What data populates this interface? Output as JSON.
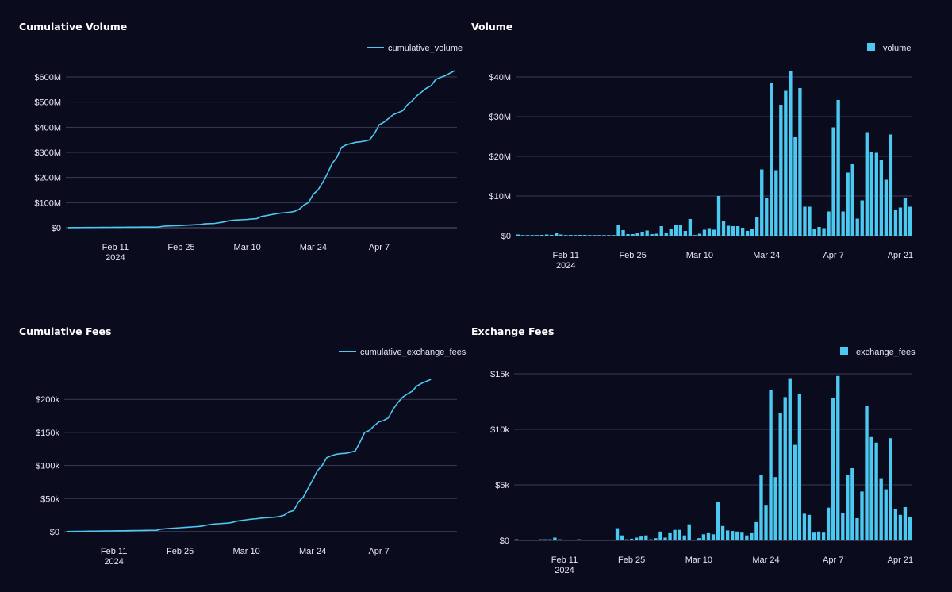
{
  "colors": {
    "background": "#0b0b1e",
    "series": "#4cc9f0",
    "grid": "#3a3a52"
  },
  "chart_data": [
    {
      "type": "line",
      "title": "Cumulative Volume",
      "legend": "cumulative_volume",
      "legend_position": "top-right",
      "x_ticks": [
        {
          "label": "Feb 11",
          "sub": "2024",
          "day": 10
        },
        {
          "label": "Feb 25",
          "day": 24
        },
        {
          "label": "Mar 10",
          "day": 38
        },
        {
          "label": "Mar 24",
          "day": 52
        },
        {
          "label": "Apr 7",
          "day": 66
        }
      ],
      "x_range": [
        "2024-02-01",
        "2024-04-23"
      ],
      "y_ticks": [
        {
          "label": "$0",
          "value": 0
        },
        {
          "label": "$100M",
          "value": 100
        },
        {
          "label": "$200M",
          "value": 200
        },
        {
          "label": "$300M",
          "value": 300
        },
        {
          "label": "$400M",
          "value": 400
        },
        {
          "label": "$500M",
          "value": 500
        },
        {
          "label": "$600M",
          "value": 600
        }
      ],
      "ylim": [
        0,
        600
      ],
      "y_unit": "millions USD",
      "x_start": "2024-02-01",
      "values": [
        0.3,
        0.5,
        0.6,
        0.8,
        0.9,
        1.0,
        1.2,
        1.4,
        1.5,
        1.6,
        1.8,
        1.9,
        2.0,
        2.2,
        2.3,
        2.4,
        2.5,
        2.6,
        2.7,
        2.8,
        5.5,
        7,
        7.5,
        8,
        9,
        10,
        11,
        12,
        13,
        15.5,
        16.5,
        17,
        20,
        23,
        27,
        30,
        31,
        32,
        33,
        35,
        36,
        45,
        48,
        52,
        55,
        58,
        60,
        62,
        65,
        73,
        90,
        100,
        133,
        150,
        180,
        215,
        255,
        280,
        320,
        330,
        335,
        340,
        342,
        345,
        350,
        375,
        410,
        420,
        435,
        450,
        458,
        466,
        490,
        505,
        525,
        540,
        555,
        565,
        590,
        598,
        605,
        615,
        625
      ]
    },
    {
      "type": "bar",
      "title": "Volume",
      "legend": "volume",
      "legend_position": "top-right",
      "x_ticks": [
        {
          "label": "Feb 11",
          "sub": "2024",
          "day": 10
        },
        {
          "label": "Feb 25",
          "day": 24
        },
        {
          "label": "Mar 10",
          "day": 38
        },
        {
          "label": "Mar 24",
          "day": 52
        },
        {
          "label": "Apr 7",
          "day": 66
        },
        {
          "label": "Apr 21",
          "day": 80
        }
      ],
      "x_range": [
        "2024-02-01",
        "2024-04-23"
      ],
      "y_ticks": [
        {
          "label": "$0",
          "value": 0
        },
        {
          "label": "$10M",
          "value": 10
        },
        {
          "label": "$20M",
          "value": 20
        },
        {
          "label": "$30M",
          "value": 30
        },
        {
          "label": "$40M",
          "value": 40
        }
      ],
      "ylim": [
        0,
        40
      ],
      "y_unit": "millions USD",
      "x_start": "2024-02-01",
      "values": [
        0.3,
        0.1,
        0.1,
        0.1,
        0.1,
        0.2,
        0.3,
        0.2,
        0.7,
        0.3,
        0.1,
        0.2,
        0.1,
        0.2,
        0.2,
        0.1,
        0.1,
        0.1,
        0.1,
        0.1,
        0.1,
        2.8,
        1.4,
        0.4,
        0.4,
        0.6,
        1.0,
        1.3,
        0.4,
        0.5,
        2.4,
        0.6,
        1.8,
        2.7,
        2.7,
        1.2,
        4.2,
        0.1,
        0.5,
        1.5,
        1.9,
        1.5,
        10,
        3.8,
        2.5,
        2.4,
        2.4,
        2.0,
        1.2,
        1.8,
        4.8,
        16.7,
        9.5,
        38.5,
        16.5,
        33,
        36.5,
        41.5,
        24.8,
        37.2,
        7.3,
        7.3,
        1.8,
        2.2,
        1.9,
        6.1,
        27.3,
        34.2,
        6.1,
        15.9,
        18,
        4.3,
        8.9,
        26.1,
        21.1,
        20.9,
        19,
        14.1,
        25.5,
        6.5,
        7.1,
        9.4,
        7.3
      ]
    },
    {
      "type": "line",
      "title": "Cumulative Fees",
      "legend": "cumulative_exchange_fees",
      "legend_position": "top-right",
      "x_ticks": [
        {
          "label": "Feb 11",
          "sub": "2024",
          "day": 10
        },
        {
          "label": "Feb 25",
          "day": 24
        },
        {
          "label": "Mar 10",
          "day": 38
        },
        {
          "label": "Mar 24",
          "day": 52
        },
        {
          "label": "Apr 7",
          "day": 66
        }
      ],
      "x_range": [
        "2024-02-01",
        "2024-04-23"
      ],
      "y_ticks": [
        {
          "label": "$0",
          "value": 0
        },
        {
          "label": "$50k",
          "value": 50
        },
        {
          "label": "$100k",
          "value": 100
        },
        {
          "label": "$150k",
          "value": 150
        },
        {
          "label": "$200k",
          "value": 200
        }
      ],
      "ylim": [
        0,
        235
      ],
      "y_unit": "thousands USD",
      "x_start": "2024-02-01",
      "values": [
        0.3,
        0.4,
        0.5,
        0.6,
        0.7,
        0.8,
        0.9,
        1.0,
        1.1,
        1.2,
        1.3,
        1.4,
        1.5,
        1.6,
        1.7,
        1.8,
        1.9,
        2.0,
        2.1,
        2.2,
        4,
        4.5,
        5,
        5.5,
        6,
        6.5,
        7,
        7.5,
        8,
        9,
        10.5,
        11.5,
        12,
        12.5,
        13,
        14,
        16,
        17,
        18,
        19,
        19.5,
        20.5,
        21,
        21.5,
        22,
        23,
        25,
        30,
        32,
        45,
        52,
        65,
        78,
        92,
        100,
        112,
        115,
        117,
        118,
        118.5,
        120,
        122,
        135,
        150,
        153,
        160,
        166,
        168,
        172,
        185,
        195,
        203,
        208,
        212,
        220,
        224,
        227,
        230
      ]
    },
    {
      "type": "bar",
      "title": "Exchange Fees",
      "legend": "exchange_fees",
      "legend_position": "top-right",
      "x_ticks": [
        {
          "label": "Feb 11",
          "sub": "2024",
          "day": 10
        },
        {
          "label": "Feb 25",
          "day": 24
        },
        {
          "label": "Mar 10",
          "day": 38
        },
        {
          "label": "Mar 24",
          "day": 52
        },
        {
          "label": "Apr 7",
          "day": 66
        },
        {
          "label": "Apr 21",
          "day": 80
        }
      ],
      "x_range": [
        "2024-02-01",
        "2024-04-23"
      ],
      "y_ticks": [
        {
          "label": "$0",
          "value": 0
        },
        {
          "label": "$5k",
          "value": 5
        },
        {
          "label": "$10k",
          "value": 10
        },
        {
          "label": "$15k",
          "value": 15
        }
      ],
      "ylim": [
        0,
        15
      ],
      "y_unit": "thousands USD",
      "x_start": "2024-02-01",
      "values": [
        0.1,
        0.05,
        0.05,
        0.05,
        0.05,
        0.1,
        0.1,
        0.1,
        0.25,
        0.1,
        0.05,
        0.05,
        0.05,
        0.1,
        0.05,
        0.05,
        0.05,
        0.05,
        0.05,
        0.05,
        0.05,
        1.1,
        0.45,
        0.1,
        0.15,
        0.25,
        0.35,
        0.45,
        0.1,
        0.2,
        0.8,
        0.25,
        0.65,
        0.95,
        0.95,
        0.45,
        1.45,
        0.05,
        0.2,
        0.55,
        0.65,
        0.55,
        3.5,
        1.3,
        0.9,
        0.85,
        0.8,
        0.7,
        0.45,
        0.65,
        1.65,
        5.9,
        3.2,
        13.5,
        5.7,
        11.5,
        12.9,
        14.6,
        8.6,
        13.2,
        2.4,
        2.3,
        0.7,
        0.8,
        0.7,
        2.95,
        12.8,
        14.8,
        2.5,
        5.9,
        6.5,
        2.0,
        4.4,
        12.1,
        9.3,
        8.8,
        5.6,
        4.6,
        9.2,
        2.8,
        2.3,
        3.0,
        2.1
      ]
    }
  ]
}
